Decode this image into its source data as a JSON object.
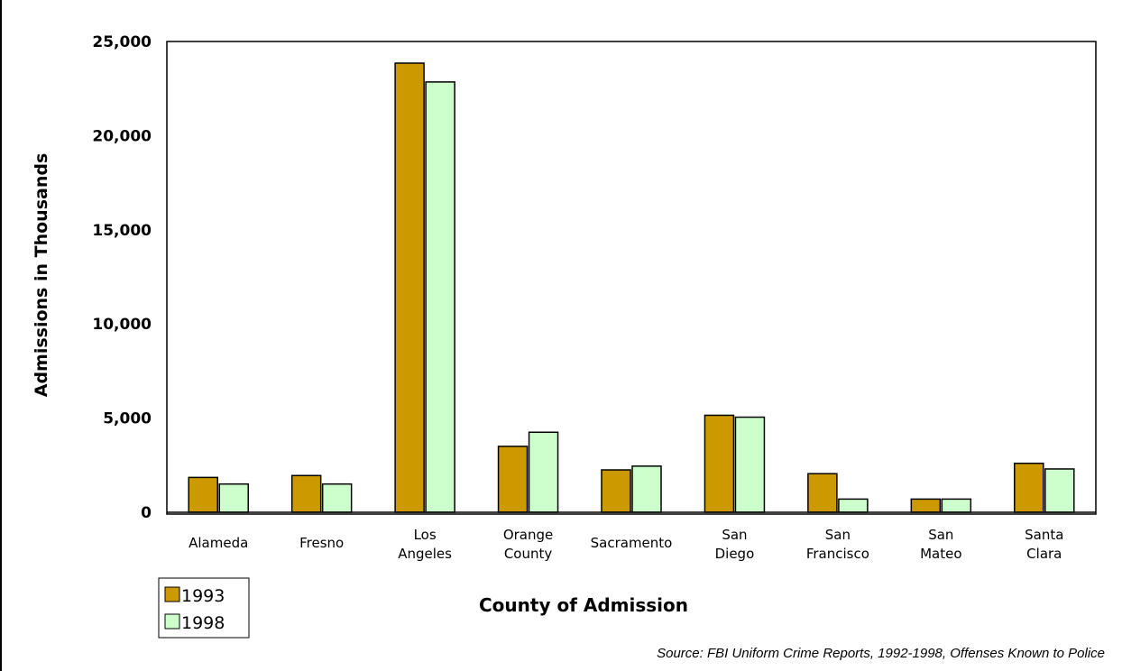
{
  "chart_data": {
    "type": "bar",
    "title": "",
    "xlabel": "County of Admission",
    "ylabel": "Admissions in Thousands",
    "ylim": [
      0,
      25000
    ],
    "yticks": [
      "0",
      "5,000",
      "10,000",
      "15,000",
      "20,000",
      "25,000"
    ],
    "categories": [
      [
        "Alameda"
      ],
      [
        "Fresno"
      ],
      [
        "Los",
        "Angeles"
      ],
      [
        "Orange",
        "County"
      ],
      [
        "Sacramento"
      ],
      [
        "San",
        "Diego"
      ],
      [
        "San",
        "Francisco"
      ],
      [
        "San",
        "Mateo"
      ],
      [
        "Santa",
        "Clara"
      ]
    ],
    "series": [
      {
        "name": "1993",
        "color": "#cc9900",
        "values": [
          1850,
          1950,
          23850,
          3500,
          2250,
          5150,
          2050,
          700,
          2600
        ]
      },
      {
        "name": "1998",
        "color": "#ccffcc",
        "values": [
          1500,
          1500,
          22850,
          4250,
          2450,
          5050,
          700,
          700,
          2300
        ]
      }
    ],
    "grid": false,
    "legend_position": "bottom-left",
    "source": "Source:  FBI Uniform Crime Reports, 1992-1998, Offenses Known to Police"
  }
}
